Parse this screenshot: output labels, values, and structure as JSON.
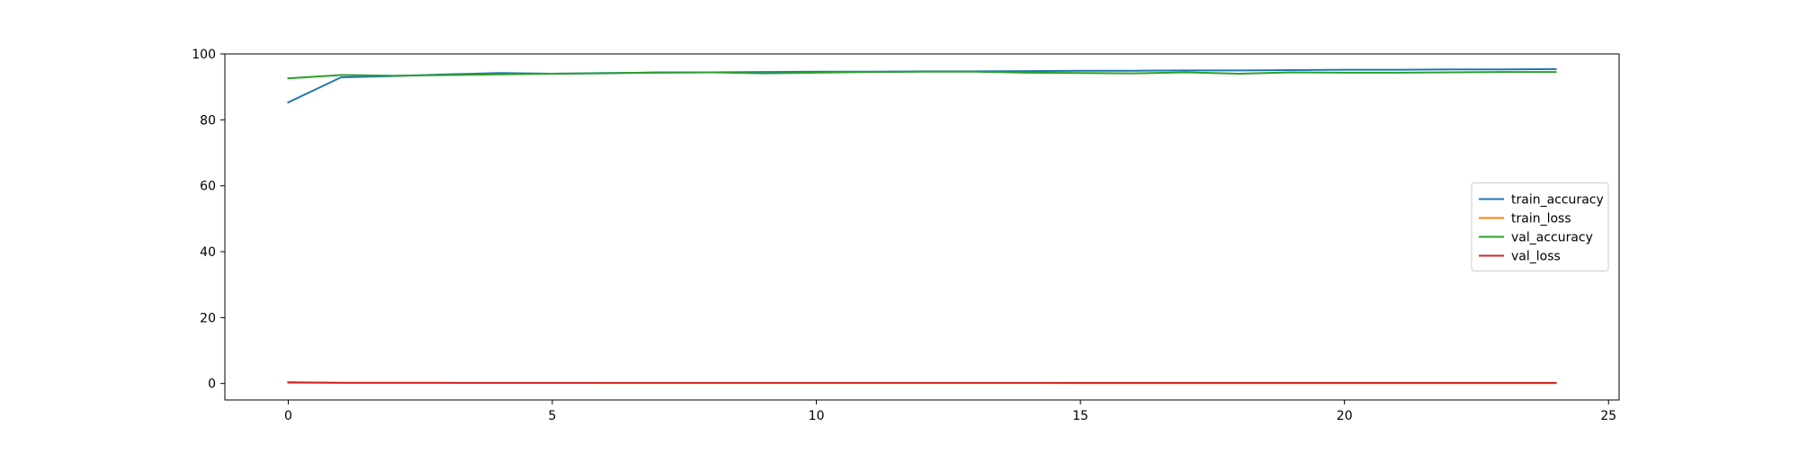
{
  "chart_data": {
    "type": "line",
    "title": "",
    "xlabel": "",
    "ylabel": "",
    "xlim": [
      -1.2,
      25.2
    ],
    "ylim": [
      -5,
      100
    ],
    "xticks": [
      0,
      5,
      10,
      15,
      20,
      25
    ],
    "yticks": [
      0,
      20,
      40,
      60,
      80,
      100
    ],
    "grid": false,
    "legend": {
      "placement": "center-right"
    },
    "x": [
      0,
      1,
      2,
      3,
      4,
      5,
      6,
      7,
      8,
      9,
      10,
      11,
      12,
      13,
      14,
      15,
      16,
      17,
      18,
      19,
      20,
      21,
      22,
      23,
      24
    ],
    "series": [
      {
        "name": "train_accuracy",
        "color": "#1f77b4",
        "values": [
          85.3,
          92.9,
          93.3,
          93.8,
          94.2,
          94.0,
          94.2,
          94.3,
          94.4,
          94.5,
          94.6,
          94.6,
          94.7,
          94.7,
          94.8,
          94.9,
          94.9,
          95.0,
          95.0,
          95.1,
          95.2,
          95.2,
          95.3,
          95.3,
          95.4
        ]
      },
      {
        "name": "train_loss",
        "color": "#ff7f0e",
        "values": [
          0.45,
          0.22,
          0.2,
          0.18,
          0.17,
          0.17,
          0.16,
          0.16,
          0.15,
          0.15,
          0.15,
          0.14,
          0.14,
          0.14,
          0.14,
          0.13,
          0.13,
          0.13,
          0.13,
          0.12,
          0.12,
          0.12,
          0.12,
          0.12,
          0.11
        ]
      },
      {
        "name": "val_accuracy",
        "color": "#2ca02c",
        "values": [
          92.6,
          93.6,
          93.4,
          93.6,
          93.8,
          94.0,
          94.1,
          94.4,
          94.4,
          94.1,
          94.3,
          94.5,
          94.6,
          94.6,
          94.3,
          94.2,
          94.1,
          94.4,
          94.0,
          94.4,
          94.3,
          94.3,
          94.4,
          94.5,
          94.5
        ]
      },
      {
        "name": "val_loss",
        "color": "#d62728",
        "values": [
          0.3,
          0.22,
          0.21,
          0.2,
          0.19,
          0.19,
          0.18,
          0.18,
          0.18,
          0.19,
          0.18,
          0.18,
          0.17,
          0.17,
          0.18,
          0.18,
          0.18,
          0.17,
          0.19,
          0.17,
          0.17,
          0.17,
          0.17,
          0.17,
          0.17
        ]
      }
    ]
  }
}
